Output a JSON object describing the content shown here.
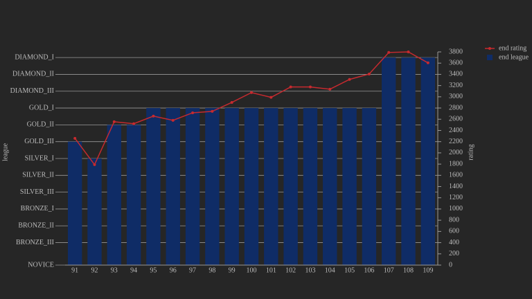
{
  "chart_data": {
    "type": "combo",
    "categories": [
      91,
      92,
      93,
      94,
      95,
      96,
      97,
      98,
      99,
      100,
      101,
      102,
      103,
      104,
      105,
      106,
      107,
      108,
      109
    ],
    "ylabel": "league",
    "y2label": "rating",
    "ylim": [
      0,
      3800
    ],
    "yticks": [
      {
        "value": 0,
        "label": "NOVICE"
      },
      {
        "value": 400,
        "label": "BRONZE_III"
      },
      {
        "value": 700,
        "label": "BRONZE_II"
      },
      {
        "value": 1000,
        "label": "BRONZE_I"
      },
      {
        "value": 1300,
        "label": "SILVER_III"
      },
      {
        "value": 1600,
        "label": "SILVER_II"
      },
      {
        "value": 1900,
        "label": "SILVER_I"
      },
      {
        "value": 2200,
        "label": "GOLD_III"
      },
      {
        "value": 2500,
        "label": "GOLD_II"
      },
      {
        "value": 2800,
        "label": "GOLD_I"
      },
      {
        "value": 3100,
        "label": "DIAMOND_III"
      },
      {
        "value": 3400,
        "label": "DIAMOND_II"
      },
      {
        "value": 3700,
        "label": "DIAMOND_I"
      }
    ],
    "y2lim": [
      0,
      3800
    ],
    "y2ticks": [
      0,
      200,
      400,
      600,
      800,
      1000,
      1200,
      1400,
      1600,
      1800,
      2000,
      2200,
      2400,
      2600,
      2800,
      3000,
      3200,
      3400,
      3600,
      3800
    ],
    "grid": true,
    "legend": "top-right",
    "series": [
      {
        "name": "end rating",
        "type": "line",
        "axis": "y2",
        "color": "#c62a2f",
        "values": [
          2260,
          1790,
          2555,
          2520,
          2655,
          2580,
          2715,
          2740,
          2900,
          3075,
          2990,
          3175,
          3175,
          3135,
          3310,
          3405,
          3790,
          3800,
          3605
        ]
      },
      {
        "name": "end league",
        "type": "bar",
        "color": "#0f2c66",
        "values": [
          2200,
          1900,
          2500,
          2500,
          2800,
          2800,
          2800,
          2800,
          2800,
          2800,
          2800,
          2800,
          2800,
          2800,
          2800,
          2800,
          3700,
          3700,
          3700
        ]
      }
    ]
  }
}
